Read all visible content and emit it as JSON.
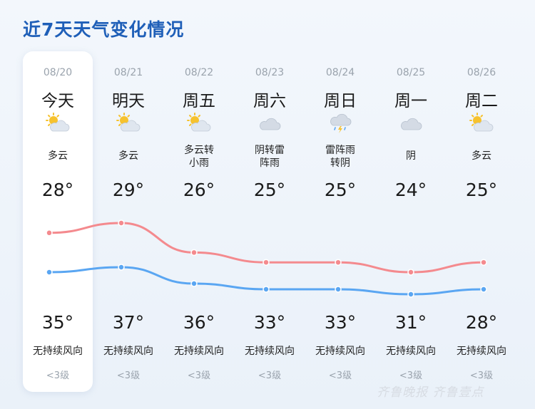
{
  "title": "近7天天气变化情况",
  "days": [
    {
      "date": "08/20",
      "weekday": "今天",
      "icon": "partly-cloudy-icon",
      "condition": [
        "多云"
      ],
      "high": "28°",
      "low": "35°",
      "wind": "无持续风向",
      "level": "<3级"
    },
    {
      "date": "08/21",
      "weekday": "明天",
      "icon": "partly-cloudy-icon",
      "condition": [
        "多云"
      ],
      "high": "29°",
      "low": "37°",
      "wind": "无持续风向",
      "level": "<3级"
    },
    {
      "date": "08/22",
      "weekday": "周五",
      "icon": "partly-cloudy-icon",
      "condition": [
        "多云转",
        "小雨"
      ],
      "high": "26°",
      "low": "36°",
      "wind": "无持续风向",
      "level": "<3级"
    },
    {
      "date": "08/23",
      "weekday": "周六",
      "icon": "cloudy-icon",
      "condition": [
        "阴转雷",
        "阵雨"
      ],
      "high": "25°",
      "low": "33°",
      "wind": "无持续风向",
      "level": "<3级"
    },
    {
      "date": "08/24",
      "weekday": "周日",
      "icon": "thunderstorm-icon",
      "condition": [
        "雷阵雨",
        "转阴"
      ],
      "high": "25°",
      "low": "33°",
      "wind": "无持续风向",
      "level": "<3级"
    },
    {
      "date": "08/25",
      "weekday": "周一",
      "icon": "cloudy-icon",
      "condition": [
        "阴"
      ],
      "high": "24°",
      "low": "31°",
      "wind": "无持续风向",
      "level": "<3级"
    },
    {
      "date": "08/26",
      "weekday": "周二",
      "icon": "partly-cloudy-icon",
      "condition": [
        "多云"
      ],
      "high": "25°",
      "low": "28°",
      "wind": "无持续风向",
      "level": "<3级"
    }
  ],
  "chart_data": {
    "type": "line",
    "categories": [
      "08/20",
      "08/21",
      "08/22",
      "08/23",
      "08/24",
      "08/25",
      "08/26"
    ],
    "series": [
      {
        "values": [
          28,
          29,
          26,
          25,
          25,
          24,
          25
        ]
      },
      {
        "values": [
          35,
          37,
          36,
          33,
          33,
          31,
          28
        ]
      }
    ]
  },
  "colors": {
    "upper_line": "#f48a8e",
    "lower_line": "#5aa6f2",
    "title": "#1f5fb8"
  },
  "watermark": "齐鲁晚报 齐鲁壹点"
}
